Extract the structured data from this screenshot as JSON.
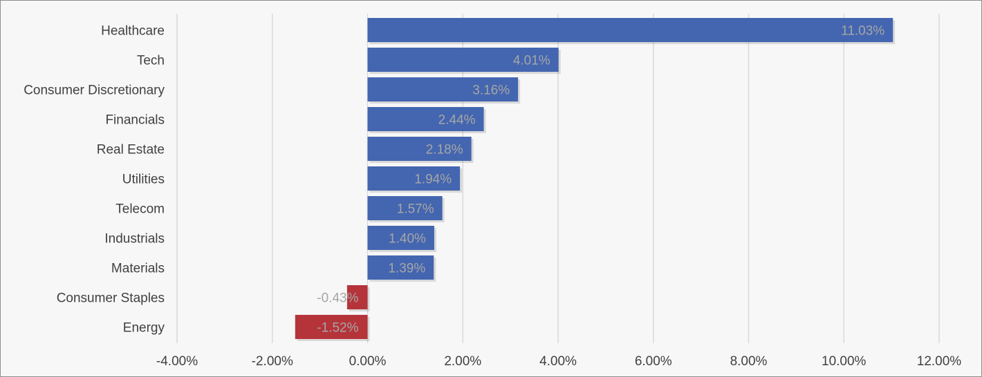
{
  "chart_data": {
    "type": "bar",
    "orientation": "horizontal",
    "categories": [
      "Healthcare",
      "Tech",
      "Consumer Discretionary",
      "Financials",
      "Real Estate",
      "Utilities",
      "Telecom",
      "Industrials",
      "Materials",
      "Consumer Staples",
      "Energy"
    ],
    "values": [
      11.03,
      4.01,
      3.16,
      2.44,
      2.18,
      1.94,
      1.57,
      1.4,
      1.39,
      -0.43,
      -1.52
    ],
    "value_labels": [
      "11.03%",
      "4.01%",
      "3.16%",
      "2.44%",
      "2.18%",
      "1.94%",
      "1.57%",
      "1.40%",
      "1.39%",
      "-0.43%",
      "-1.52%"
    ],
    "xlim": [
      -4,
      12
    ],
    "x_ticks": [
      -4,
      -2,
      0,
      2,
      4,
      6,
      8,
      10,
      12
    ],
    "x_tick_labels": [
      "-4.00%",
      "-2.00%",
      "0.00%",
      "2.00%",
      "4.00%",
      "6.00%",
      "8.00%",
      "10.00%",
      "12.00%"
    ],
    "title": "",
    "xlabel": "",
    "ylabel": "",
    "grid": "vertical",
    "legend": "none",
    "colors": {
      "positive": "#4466b0",
      "negative": "#b5343a",
      "gridline": "#d9d9d9",
      "data_label": "#a6a6a6",
      "text": "#404040"
    }
  }
}
